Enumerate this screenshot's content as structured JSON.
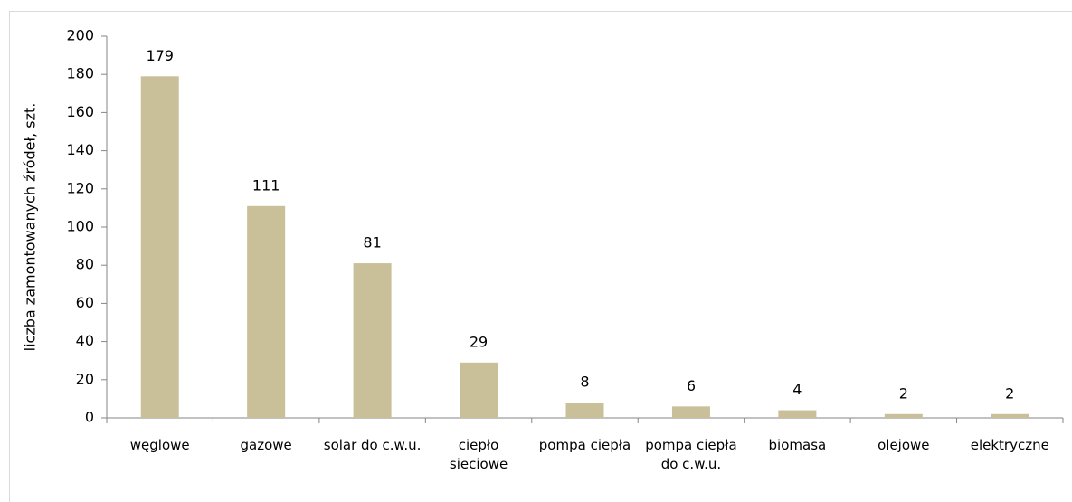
{
  "chart_data": {
    "type": "bar",
    "y_label": "liczba zamontowanych źródeł, szt.",
    "categories": [
      "węglowe",
      "gazowe",
      "solar do c.w.u.",
      "ciepło sieciowe",
      "pompa ciepła",
      "pompa ciepła do c.w.u.",
      "biomasa",
      "olejowe",
      "elektryczne"
    ],
    "values": [
      179,
      111,
      81,
      29,
      8,
      6,
      4,
      2,
      2
    ],
    "color": "#c9bf98",
    "ylim": [
      0,
      200
    ],
    "yticks": [
      0,
      20,
      40,
      60,
      80,
      100,
      120,
      140,
      160,
      180,
      200
    ]
  }
}
